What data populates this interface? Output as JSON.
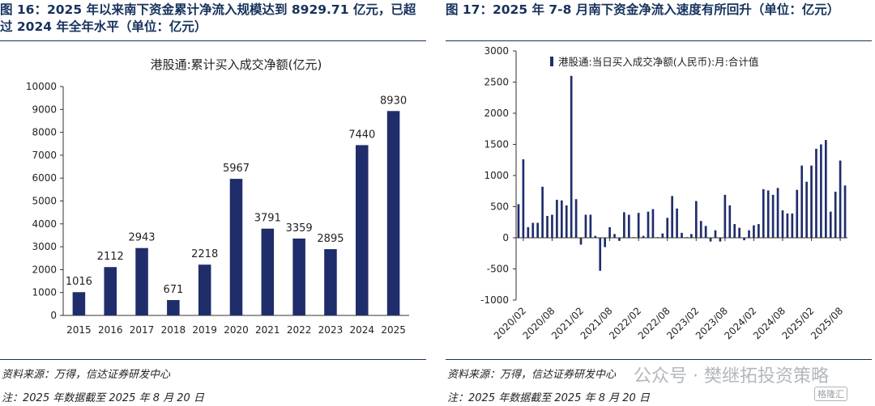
{
  "left": {
    "figure_title": "图 16：2025 年以来南下资金累计净流入规模达到 8929.71 亿元，已超过 2024 年全年水平（单位：亿元）",
    "source": "资料来源：万得，信达证券研发中心",
    "note": "注：2025 年数据截至 2025 年 8 月 20 日"
  },
  "right": {
    "figure_title": "图 17：2025 年 7-8 月南下资金净流入速度有所回升（单位：亿元）",
    "source": "资料来源：万得，信达证券研发中心",
    "note": "注：2025 年数据截至 2025 年 8 月 20 日"
  },
  "watermark": {
    "text": "公众号 · 樊继拓投资策略",
    "logo": "格隆汇"
  },
  "colors": {
    "bar": "#1f2d6b",
    "title": "#16325c",
    "axis": "#333333"
  },
  "chart_data": [
    {
      "type": "bar",
      "title": "港股通:累计买入成交净额(亿元)",
      "categories": [
        "2015",
        "2016",
        "2017",
        "2018",
        "2019",
        "2020",
        "2021",
        "2022",
        "2023",
        "2024",
        "2025"
      ],
      "values": [
        1016,
        2112,
        2943,
        671,
        2218,
        5967,
        3791,
        3359,
        2895,
        7440,
        8930
      ],
      "ylim": [
        0,
        10000
      ],
      "yticks": [
        0,
        1000,
        2000,
        3000,
        4000,
        5000,
        6000,
        7000,
        8000,
        9000,
        10000
      ],
      "data_labels": true,
      "grid": false
    },
    {
      "type": "bar",
      "legend": "港股通:当日买入成交净额(人民币):月:合计值",
      "legend_position": "top",
      "xlabels": [
        "2020/02",
        "2020/08",
        "2021/02",
        "2021/08",
        "2022/02",
        "2022/08",
        "2023/02",
        "2023/08",
        "2024/02",
        "2024/08",
        "2025/02",
        "2025/08"
      ],
      "x_start": "2020/01",
      "values": [
        540,
        1260,
        170,
        240,
        240,
        820,
        350,
        370,
        610,
        600,
        520,
        2600,
        620,
        -110,
        370,
        370,
        30,
        -530,
        -150,
        170,
        60,
        -50,
        410,
        370,
        10,
        400,
        30,
        420,
        460,
        10,
        70,
        320,
        670,
        470,
        80,
        10,
        60,
        590,
        270,
        190,
        -60,
        120,
        -60,
        690,
        520,
        220,
        160,
        -40,
        120,
        200,
        220,
        780,
        760,
        690,
        800,
        440,
        390,
        390,
        770,
        1160,
        900,
        1160,
        1430,
        1500,
        1570,
        420,
        740,
        1240,
        840
      ],
      "ylim": [
        -1000,
        3000
      ],
      "yticks": [
        -1000,
        -500,
        0,
        500,
        1000,
        1500,
        2000,
        2500,
        3000
      ],
      "grid": false
    }
  ]
}
